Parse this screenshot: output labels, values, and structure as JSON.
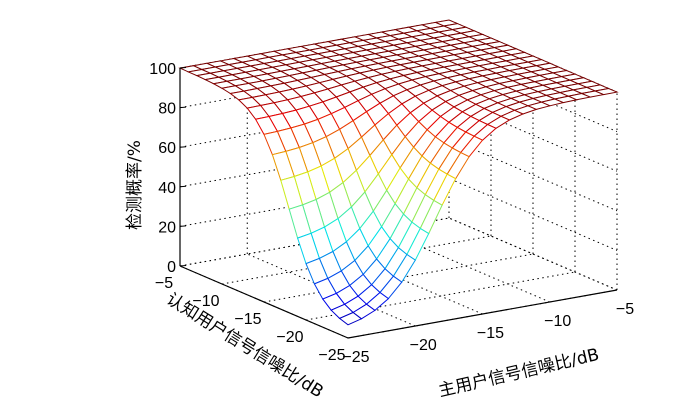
{
  "chart_data": {
    "type": "surface",
    "title": "",
    "x": {
      "label": "主用户信号信噪比/dB",
      "range": [
        -25,
        -5
      ],
      "ticks": [
        -25,
        -20,
        -15,
        -10,
        -5
      ],
      "tick_labels": [
        "−25",
        "−20",
        "−15",
        "−10",
        "−5"
      ]
    },
    "y": {
      "label": "认知用户信号信噪比/dB",
      "range": [
        -25,
        -5
      ],
      "ticks": [
        -25,
        -20,
        -15,
        -10,
        -5
      ],
      "tick_labels": [
        "−25",
        "−20",
        "−15",
        "−10",
        "−5"
      ]
    },
    "z": {
      "label": "检测概率/%",
      "range": [
        0,
        100
      ],
      "ticks": [
        0,
        20,
        40,
        60,
        80,
        100
      ],
      "tick_labels": [
        "0",
        "20",
        "40",
        "60",
        "80",
        "100"
      ]
    },
    "grid": true,
    "colormap": "jet",
    "mesh": {
      "x_samples": [
        -25,
        -24,
        -23,
        -22,
        -21,
        -20,
        -19,
        -18,
        -17,
        -16,
        -15,
        -14,
        -13,
        -12,
        -11,
        -10,
        -9,
        -8,
        -7,
        -6,
        -5
      ],
      "y_samples": [
        -25,
        -24,
        -23,
        -22,
        -21,
        -20,
        -19,
        -18,
        -17,
        -16,
        -15,
        -14,
        -13,
        -12,
        -11,
        -10,
        -9,
        -8,
        -7,
        -6,
        -5
      ],
      "surface_description_values": {
        "min_detection_probability_at": [
          -25,
          -25
        ],
        "min_value": 2,
        "plateau_value": 100
      }
    }
  }
}
